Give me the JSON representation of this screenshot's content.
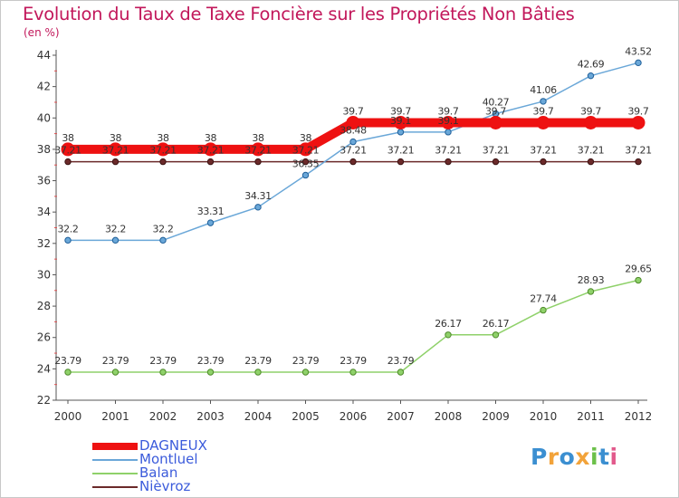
{
  "title": "Evolution du Taux de Taxe Foncière sur les Propriétés Non Bâties",
  "unit_label": "(en %)",
  "logo": {
    "text": "Proxiti",
    "colors": [
      "#3b8fd1",
      "#f2a33a",
      "#3b8fd1",
      "#f2a33a",
      "#6cc04a",
      "#3b8fd1",
      "#e25a8c"
    ]
  },
  "colors": {
    "title": "#c2185b",
    "axis": "#555555",
    "legend_text": "#3b5bdb"
  },
  "chart_data": {
    "type": "line",
    "title": "Evolution du Taux de Taxe Foncière sur les Propriétés Non Bâties",
    "ylabel": "(en %)",
    "xlabel": "",
    "categories": [
      "2000",
      "2001",
      "2002",
      "2003",
      "2004",
      "2005",
      "2006",
      "2007",
      "2008",
      "2009",
      "2010",
      "2011",
      "2012"
    ],
    "ylim": [
      22,
      44
    ],
    "yticks": [
      22,
      24,
      26,
      28,
      30,
      32,
      34,
      36,
      38,
      40,
      42,
      44
    ],
    "grid": false,
    "legend_position": "bottom-left",
    "series": [
      {
        "name": "Nièvroz",
        "color": "#6b2a2a",
        "labels": [
          "37.21",
          "37.21",
          "37.21",
          "37.21",
          "37.21",
          "37.21",
          "37.21",
          "37.21",
          "37.21",
          "37.21",
          "37.21",
          "37.21",
          "37.21"
        ],
        "values": [
          37.21,
          37.21,
          37.21,
          37.21,
          37.21,
          37.21,
          37.21,
          37.21,
          37.21,
          37.21,
          37.21,
          37.21,
          37.21
        ]
      },
      {
        "name": "Balan",
        "color": "#8fd16a",
        "labels": [
          "23.79",
          "23.79",
          "23.79",
          "23.79",
          "23.79",
          "23.79",
          "23.79",
          "23.79",
          "26.17",
          "26.17",
          "27.74",
          "28.93",
          "29.65"
        ],
        "values": [
          23.79,
          23.79,
          23.79,
          23.79,
          23.79,
          23.79,
          23.79,
          23.79,
          26.17,
          26.17,
          27.74,
          28.93,
          29.65
        ]
      },
      {
        "name": "Montluel",
        "color": "#6aa7d8",
        "labels": [
          "32.2",
          "32.2",
          "32.2",
          "33.31",
          "34.31",
          "36.35",
          "38.48",
          "39.1",
          "39.1",
          "40.27",
          "41.06",
          "42.69",
          "43.52"
        ],
        "values": [
          32.2,
          32.2,
          32.2,
          33.31,
          34.31,
          36.35,
          38.48,
          39.1,
          39.1,
          40.27,
          41.06,
          42.69,
          43.52
        ]
      },
      {
        "name": "DAGNEUX",
        "color": "#ee1111",
        "labels": [
          "38",
          "38",
          "38",
          "38",
          "38",
          "38",
          "39.7",
          "39.7",
          "39.7",
          "39.7",
          "39.7",
          "39.7",
          "39.7"
        ],
        "values": [
          38,
          38,
          38,
          38,
          38,
          38,
          39.7,
          39.7,
          39.7,
          39.7,
          39.7,
          39.7,
          39.7
        ]
      }
    ]
  }
}
